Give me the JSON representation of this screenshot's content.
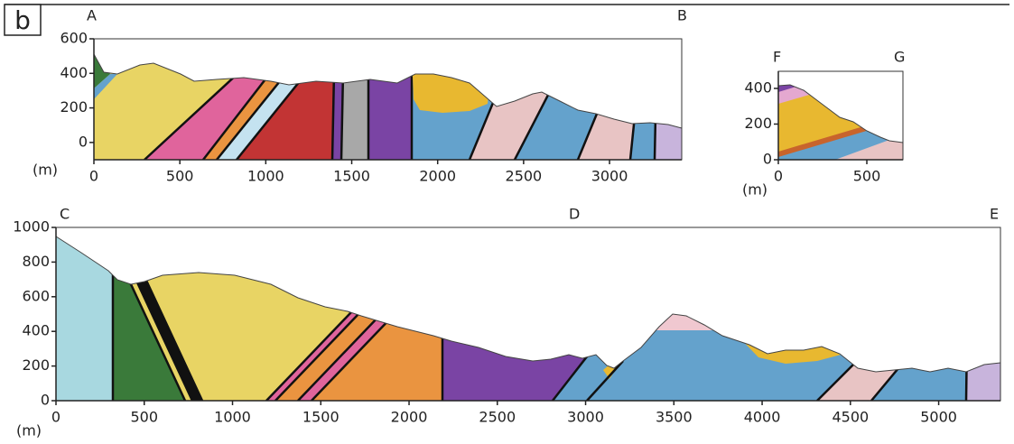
{
  "panel_label": "b",
  "sections": [
    {
      "start_label": "A",
      "end_label": "B",
      "unit": "(m)",
      "xlim": [
        0,
        3420
      ],
      "ylim": [
        -100,
        600
      ],
      "xticks": [
        0,
        500,
        1000,
        1500,
        2000,
        2500,
        3000
      ],
      "yticks": [
        0,
        200,
        400,
        600
      ]
    },
    {
      "start_label": "F",
      "end_label": "G",
      "unit": "(m)",
      "xlim": [
        0,
        704
      ],
      "ylim": [
        0,
        496
      ],
      "xticks": [
        0,
        500
      ],
      "yticks": [
        0,
        200,
        400
      ]
    },
    {
      "start_label": "C",
      "mid_label": "D",
      "end_label": "E",
      "unit": "(m)",
      "xlim": [
        0,
        5350
      ],
      "ylim": [
        0,
        1000
      ],
      "xticks": [
        0,
        500,
        1000,
        1500,
        2000,
        2500,
        3000,
        3500,
        4000,
        4500,
        5000
      ],
      "yticks": [
        0,
        200,
        400,
        600,
        800,
        1000
      ]
    }
  ]
}
